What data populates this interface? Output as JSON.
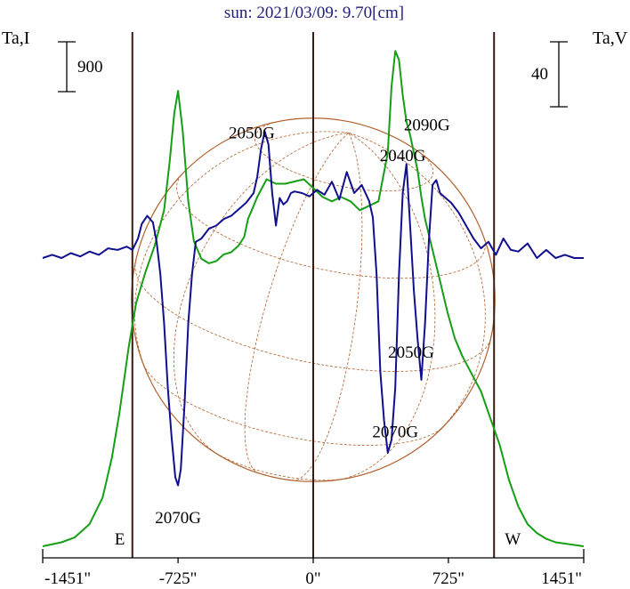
{
  "chart_data": {
    "type": "line",
    "title": "sun: 2021/03/09: 9.70[cm]",
    "ylabel_left": "Ta,I",
    "ylabel_right": "Ta,V",
    "scalebar_left": "900",
    "scalebar_right": "40",
    "x_unit": "arcsec",
    "xlim": [
      -1451,
      1451
    ],
    "xticks": [
      -1451,
      -725,
      0,
      725,
      1451
    ],
    "xtick_labels": [
      "-1451\"",
      "-725\"",
      "0\"",
      "725\"",
      "1451\""
    ],
    "limb_markers": [
      {
        "label": "E",
        "x": -970
      },
      {
        "label": "W",
        "x": 970
      }
    ],
    "center_line_x": 0,
    "disk_radius_arcsec": 970,
    "grid": true,
    "series": [
      {
        "color": "#169e16",
        "axis": "left",
        "x": [
          -1451,
          -1350,
          -1280,
          -1200,
          -1130,
          -1080,
          -1040,
          -990,
          -950,
          -900,
          -850,
          -800,
          -770,
          -745,
          -725,
          -700,
          -670,
          -640,
          -600,
          -560,
          -520,
          -480,
          -440,
          -400,
          -370,
          -350,
          -330,
          -300,
          -250,
          -200,
          -150,
          -100,
          -50,
          0,
          50,
          100,
          150,
          200,
          250,
          300,
          350,
          400,
          420,
          440,
          460,
          480,
          500,
          520,
          540,
          560,
          580,
          600,
          640,
          680,
          720,
          760,
          800,
          850,
          900,
          950,
          1000,
          1050,
          1100,
          1150,
          1200,
          1250,
          1300,
          1451
        ],
        "y": [
          0,
          90,
          200,
          500,
          1100,
          2000,
          3000,
          4500,
          5500,
          6200,
          6800,
          7600,
          8700,
          9800,
          10300,
          9400,
          7800,
          6900,
          6500,
          6400,
          6450,
          6600,
          6650,
          6800,
          7000,
          7400,
          7600,
          7900,
          8300,
          8200,
          8200,
          8250,
          8300,
          8100,
          7900,
          7800,
          7900,
          7800,
          7600,
          7700,
          7800,
          8900,
          10400,
          11200,
          11000,
          10200,
          9600,
          9300,
          8900,
          8500,
          7900,
          7400,
          6700,
          6000,
          5300,
          4700,
          4300,
          3900,
          3500,
          2900,
          2300,
          1500,
          900,
          500,
          300,
          170,
          90,
          0
        ]
      },
      {
        "color": "#10108e",
        "axis": "right",
        "x": [
          -1451,
          -1400,
          -1350,
          -1300,
          -1250,
          -1200,
          -1150,
          -1100,
          -1050,
          -1000,
          -970,
          -940,
          -920,
          -890,
          -860,
          -840,
          -820,
          -800,
          -780,
          -760,
          -740,
          -725,
          -710,
          -690,
          -670,
          -650,
          -630,
          -600,
          -560,
          -520,
          -480,
          -440,
          -400,
          -360,
          -320,
          -300,
          -280,
          -260,
          -240,
          -220,
          -200,
          -180,
          -160,
          -140,
          -120,
          -100,
          -60,
          -20,
          20,
          60,
          100,
          140,
          180,
          220,
          260,
          300,
          320,
          340,
          360,
          380,
          400,
          420,
          440,
          460,
          480,
          500,
          520,
          540,
          560,
          580,
          600,
          620,
          640,
          660,
          680,
          700,
          740,
          780,
          820,
          860,
          900,
          940,
          980,
          1020,
          1060,
          1100,
          1150,
          1200,
          1250,
          1300,
          1350,
          1400,
          1451
        ],
        "y": [
          0,
          2,
          0,
          3,
          1,
          4,
          2,
          6,
          5,
          7,
          5,
          12,
          21,
          26,
          22,
          10,
          -10,
          -40,
          -80,
          -110,
          -135,
          -140,
          -130,
          -90,
          -40,
          -10,
          10,
          12,
          18,
          20,
          24,
          26,
          30,
          34,
          40,
          50,
          67,
          78,
          70,
          40,
          20,
          37,
          33,
          35,
          40,
          41,
          40,
          38,
          42,
          39,
          47,
          36,
          53,
          40,
          45,
          35,
          25,
          -10,
          -70,
          -100,
          -120,
          -112,
          -80,
          -10,
          40,
          58,
          20,
          -20,
          -50,
          -75,
          -40,
          10,
          45,
          48,
          40,
          38,
          34,
          28,
          20,
          12,
          6,
          10,
          2,
          12,
          5,
          4,
          9,
          0,
          5,
          0,
          2,
          0,
          0
        ]
      }
    ],
    "annotations": [
      {
        "text": "2050G",
        "x": -330,
        "y_ta_v": 77
      },
      {
        "text": "2070G",
        "x": -725,
        "y_ta_v": -160
      },
      {
        "text": "2090G",
        "x": 610,
        "y_ta_v": 82
      },
      {
        "text": "2040G",
        "x": 480,
        "y_ta_v": 63
      },
      {
        "text": "2050G",
        "x": 525,
        "y_ta_v": -58
      },
      {
        "text": "2070G",
        "x": 440,
        "y_ta_v": -107
      }
    ]
  }
}
